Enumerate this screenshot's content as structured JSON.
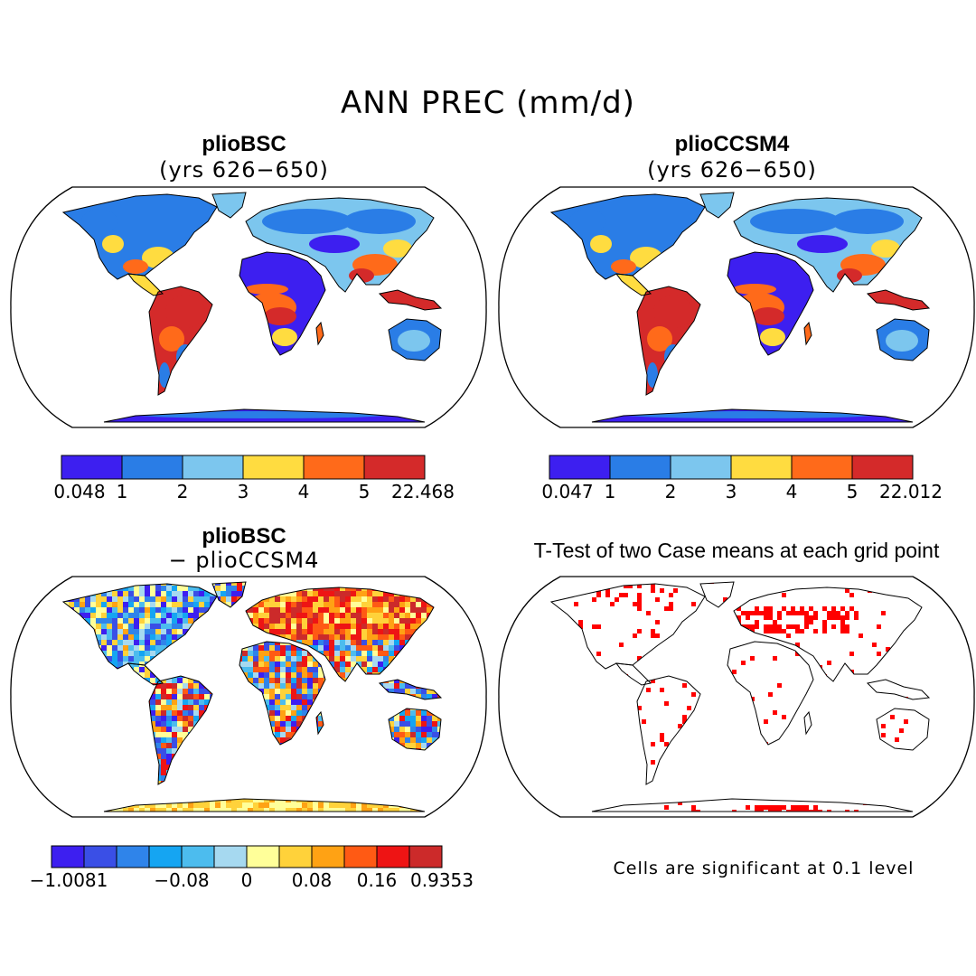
{
  "title": "ANN PREC (mm/d)",
  "panels": [
    {
      "id": "top-left",
      "title": "plioBSC",
      "subtitle": "(yrs 626−650)",
      "colorbar": {
        "colors": [
          "#3d1ff0",
          "#2a7de6",
          "#7cc6ee",
          "#ffdc40",
          "#ff6a1a",
          "#d42a2a"
        ],
        "ticks": [
          "0.048",
          "1",
          "2",
          "3",
          "4",
          "5",
          "22.468"
        ]
      }
    },
    {
      "id": "top-right",
      "title": "plioCCSM4",
      "subtitle": "(yrs 626−650)",
      "colorbar": {
        "colors": [
          "#3d1ff0",
          "#2a7de6",
          "#7cc6ee",
          "#ffdc40",
          "#ff6a1a",
          "#d42a2a"
        ],
        "ticks": [
          "0.047",
          "1",
          "2",
          "3",
          "4",
          "5",
          "22.012"
        ]
      }
    },
    {
      "id": "bottom-left",
      "title": "plioBSC",
      "subtitle": "− plioCCSM4",
      "colorbar": {
        "colors": [
          "#3d1ff0",
          "#3a4fe6",
          "#2f84ea",
          "#15a5f2",
          "#4cbcee",
          "#a6d9f0",
          "#ffff99",
          "#ffd23a",
          "#ffa214",
          "#ff5a14",
          "#ee1414",
          "#cc2a2a"
        ],
        "ticks": [
          "−1.0081",
          "−0.08",
          "0",
          "0.08",
          "0.16",
          "0.9353"
        ]
      }
    },
    {
      "id": "bottom-right",
      "title": "T-Test of two Case means at each grid point",
      "note": "Cells are significant at 0.1 level",
      "significance_color": "#ff0000"
    }
  ]
}
